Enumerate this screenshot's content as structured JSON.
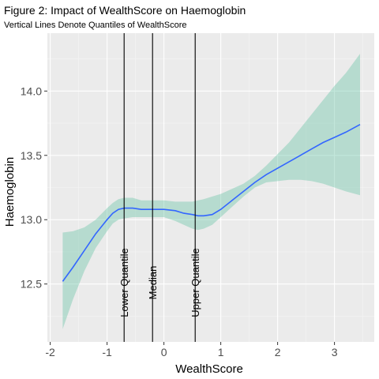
{
  "chart_data": {
    "type": "line",
    "title": "Figure 2: Impact of WealthScore on Haemoglobin",
    "subtitle": "Vertical Lines Denote Quantiles of WealthScore",
    "xlabel": "WealthScore",
    "ylabel": "Haemoglobin",
    "xlim": [
      -2.05,
      3.7
    ],
    "ylim": [
      12.05,
      14.45
    ],
    "xticks": [
      -2,
      -1,
      0,
      1,
      2,
      3
    ],
    "yticks": [
      12.5,
      13.0,
      13.5,
      14.0
    ],
    "ytick_labels": [
      "12.5",
      "13.0",
      "13.5",
      "14.0"
    ],
    "grid": true,
    "series": [
      {
        "color": "#3366ff",
        "ribbon_color": "#66c2a5",
        "x": [
          -1.78,
          -1.6,
          -1.4,
          -1.2,
          -1.0,
          -0.9,
          -0.8,
          -0.7,
          -0.55,
          -0.4,
          -0.2,
          0.0,
          0.2,
          0.35,
          0.5,
          0.6,
          0.7,
          0.85,
          1.0,
          1.2,
          1.4,
          1.6,
          1.8,
          2.0,
          2.2,
          2.4,
          2.6,
          2.8,
          3.0,
          3.2,
          3.45
        ],
        "y": [
          12.52,
          12.63,
          12.76,
          12.89,
          13.0,
          13.05,
          13.08,
          13.09,
          13.09,
          13.08,
          13.08,
          13.08,
          13.07,
          13.05,
          13.04,
          13.03,
          13.03,
          13.04,
          13.08,
          13.15,
          13.22,
          13.29,
          13.35,
          13.4,
          13.45,
          13.5,
          13.55,
          13.6,
          13.64,
          13.68,
          13.74
        ],
        "lower": [
          12.15,
          12.38,
          12.6,
          12.78,
          12.91,
          12.97,
          13.0,
          13.01,
          13.02,
          13.02,
          13.02,
          13.02,
          12.99,
          12.96,
          12.93,
          12.92,
          12.93,
          12.96,
          13.02,
          13.1,
          13.18,
          13.25,
          13.29,
          13.3,
          13.31,
          13.31,
          13.3,
          13.28,
          13.25,
          13.22,
          13.19
        ],
        "upper": [
          12.9,
          12.91,
          12.94,
          13.0,
          13.09,
          13.13,
          13.16,
          13.17,
          13.17,
          13.15,
          13.15,
          13.15,
          13.14,
          13.14,
          13.14,
          13.15,
          13.16,
          13.18,
          13.2,
          13.24,
          13.28,
          13.34,
          13.42,
          13.51,
          13.6,
          13.71,
          13.82,
          13.93,
          14.04,
          14.14,
          14.29
        ]
      }
    ],
    "vlines": [
      {
        "x": -0.7,
        "label": "Lower Quantile"
      },
      {
        "x": -0.2,
        "label": "Median"
      },
      {
        "x": 0.55,
        "label": "Upper Quantile"
      }
    ],
    "colors": {
      "panel": "#ebebeb",
      "grid_major": "#ffffff",
      "grid_minor": "#f5f5f5",
      "line": "#3366ff",
      "ribbon": "#66c2a5",
      "vline": "#000000"
    }
  }
}
